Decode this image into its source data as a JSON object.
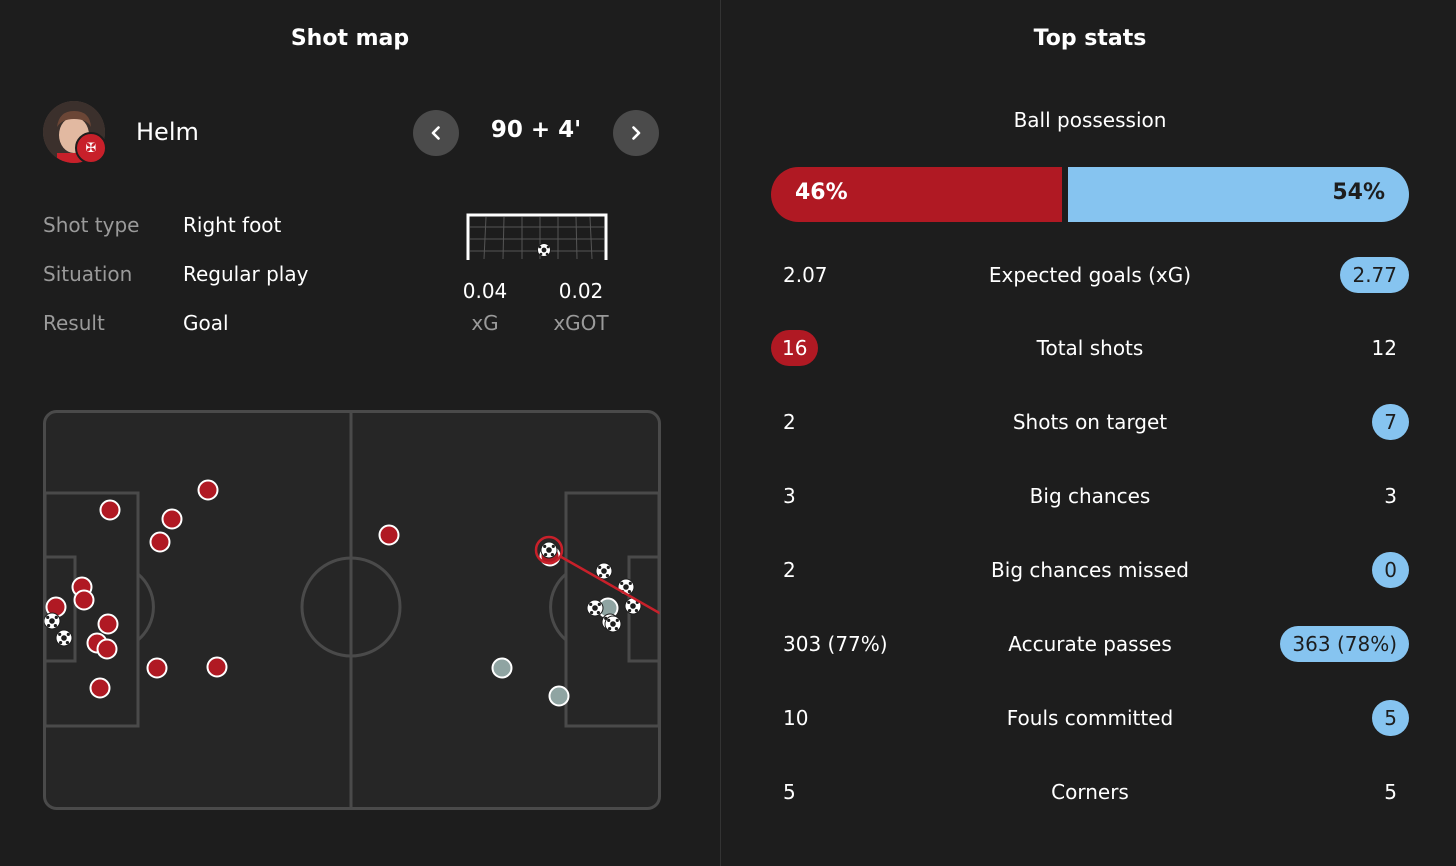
{
  "shot_map": {
    "title": "Shot map",
    "player": {
      "name": "Helm",
      "badge_icon": "club-badge-icon"
    },
    "minute": "90 + 4'",
    "details": [
      {
        "label": "Shot type",
        "value": "Right foot"
      },
      {
        "label": "Situation",
        "value": "Regular play"
      },
      {
        "label": "Result",
        "value": "Goal"
      }
    ],
    "xg": {
      "value": "0.04",
      "label": "xG"
    },
    "xgot": {
      "value": "0.02",
      "label": "xGOT"
    },
    "colors": {
      "home": "#b01923",
      "away_off_target": "#8fa4a2",
      "goal_ball": "#ffffff",
      "pitch_line": "#4a4a4a"
    }
  },
  "stats": {
    "title": "Top stats",
    "possession": {
      "label": "Ball possession",
      "home": "46%",
      "away": "54%",
      "home_fraction": 0.46
    },
    "rows": [
      {
        "name": "Expected goals (xG)",
        "home": "2.07",
        "away": "2.77",
        "highlight": "away"
      },
      {
        "name": "Total shots",
        "home": "16",
        "away": "12",
        "highlight": "home"
      },
      {
        "name": "Shots on target",
        "home": "2",
        "away": "7",
        "highlight": "away"
      },
      {
        "name": "Big chances",
        "home": "3",
        "away": "3",
        "highlight": "none"
      },
      {
        "name": "Big chances missed",
        "home": "2",
        "away": "0",
        "highlight": "away"
      },
      {
        "name": "Accurate passes",
        "home": "303 (77%)",
        "away": "363 (78%)",
        "highlight": "away"
      },
      {
        "name": "Fouls committed",
        "home": "10",
        "away": "5",
        "highlight": "away"
      },
      {
        "name": "Corners",
        "home": "5",
        "away": "5",
        "highlight": "none"
      }
    ],
    "colors": {
      "home": "#b01923",
      "away": "#86c4f0"
    }
  }
}
